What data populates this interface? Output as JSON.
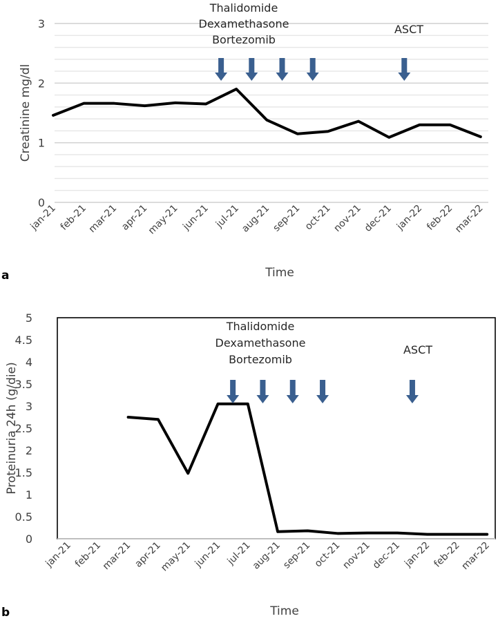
{
  "figure": {
    "panel_a_label": "a",
    "panel_b_label": "b"
  },
  "chart_data": [
    {
      "type": "line",
      "panel": "a",
      "title": "",
      "xlabel": "Time",
      "ylabel": "Creatinine mg/dl",
      "ylim": [
        0,
        3
      ],
      "yticks": [
        "0",
        "1",
        "2",
        "3"
      ],
      "grid": true,
      "categories": [
        "jan-21",
        "feb-21",
        "mar-21",
        "apr-21",
        "may-21",
        "jun-21",
        "jul-21",
        "aug-21",
        "sep-21",
        "oct-21",
        "nov-21",
        "dec-21",
        "jan-22",
        "feb-22",
        "mar-22"
      ],
      "series": [
        {
          "values": [
            1.46,
            1.66,
            1.66,
            1.62,
            1.67,
            1.65,
            1.9,
            1.38,
            1.15,
            1.19,
            1.36,
            1.09,
            1.3,
            1.3,
            1.1
          ],
          "color": "#000000"
        }
      ],
      "annotations": {
        "treatment_lines": [
          "Thalidomide",
          "Dexamethasone",
          "Bortezomib"
        ],
        "asct_label": "ASCT",
        "arrow_categories": [
          "jun-21",
          "jul-21",
          "aug-21",
          "sep-21",
          "dec-21"
        ],
        "arrow_color": "#3A5F8F"
      }
    },
    {
      "type": "line",
      "panel": "b",
      "title": "",
      "xlabel": "Time",
      "ylabel": "Proteinuria 24h (g/die)",
      "ylim": [
        0,
        5
      ],
      "yticks": [
        "0",
        "0.5",
        "1",
        "1.5",
        "2",
        "2.5",
        "3",
        "3.5",
        "4",
        "4.5",
        "5"
      ],
      "grid": false,
      "categories": [
        "jan-21",
        "feb-21",
        "mar-21",
        "apr-21",
        "may-21",
        "jun-21",
        "jul-21",
        "aug-21",
        "sep-21",
        "oct-21",
        "nov-21",
        "dec-21",
        "jan-22",
        "feb-22",
        "mar-22"
      ],
      "series": [
        {
          "values": [
            null,
            null,
            2.75,
            2.7,
            1.48,
            3.05,
            3.05,
            0.16,
            0.18,
            0.12,
            0.13,
            0.13,
            0.1,
            0.1,
            0.1
          ],
          "color": "#000000"
        }
      ],
      "annotations": {
        "treatment_lines": [
          "Thalidomide",
          "Dexamethasone",
          "Bortezomib"
        ],
        "asct_label": "ASCT",
        "arrow_categories": [
          "jun-21",
          "jul-21",
          "aug-21",
          "sep-21",
          "dec-21"
        ],
        "arrow_color": "#3A5F8F"
      }
    }
  ]
}
